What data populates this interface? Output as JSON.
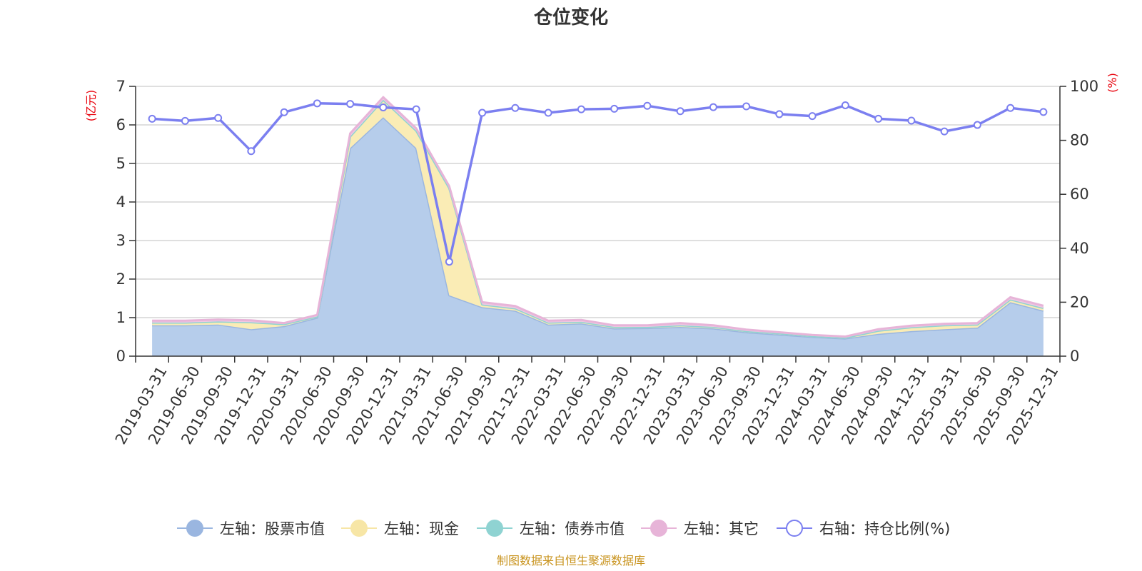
{
  "chart_data": {
    "type": "area",
    "title": "仓位变化",
    "left_unit": "(亿元)",
    "right_unit": "(%)",
    "categories": [
      "2019-03-31",
      "2019-06-30",
      "2019-09-30",
      "2019-12-31",
      "2020-03-31",
      "2020-06-30",
      "2020-09-30",
      "2020-12-31",
      "2021-03-31",
      "2021-06-30",
      "2021-09-30",
      "2021-12-31",
      "2022-03-31",
      "2022-06-30",
      "2022-09-30",
      "2022-12-31",
      "2023-03-31",
      "2023-06-30",
      "2023-09-30",
      "2023-12-31",
      "2024-03-31",
      "2024-06-30",
      "2024-09-30",
      "2024-12-31",
      "2025-03-31",
      "2025-06-30",
      "2025-09-30",
      "2025-12-31"
    ],
    "ylim_left": [
      0,
      7
    ],
    "yticks_left": [
      0,
      1,
      2,
      3,
      4,
      5,
      6,
      7
    ],
    "ylim_right": [
      0,
      100
    ],
    "yticks_right": [
      0,
      20,
      40,
      60,
      80,
      100
    ],
    "series": [
      {
        "name": "左轴：股票市值",
        "axis": "left",
        "color": "#9ab6e0",
        "fill": "#b6cdeb",
        "values": [
          0.8,
          0.8,
          0.82,
          0.7,
          0.78,
          1.0,
          5.4,
          6.2,
          5.4,
          1.58,
          1.27,
          1.18,
          0.82,
          0.85,
          0.72,
          0.73,
          0.76,
          0.72,
          0.62,
          0.56,
          0.5,
          0.46,
          0.58,
          0.65,
          0.7,
          0.74,
          1.4,
          1.18
        ]
      },
      {
        "name": "左轴：现金",
        "axis": "left",
        "color": "#f7e6a6",
        "fill": "#faecb5",
        "values": [
          0.07,
          0.07,
          0.08,
          0.18,
          0.05,
          0.03,
          0.3,
          0.45,
          0.45,
          2.78,
          0.07,
          0.06,
          0.05,
          0.04,
          0.04,
          0.03,
          0.04,
          0.04,
          0.03,
          0.03,
          0.02,
          0.02,
          0.08,
          0.1,
          0.1,
          0.08,
          0.07,
          0.07
        ]
      },
      {
        "name": "左轴：债券市值",
        "axis": "left",
        "color": "#8fd3d2",
        "fill": "#a8dddc",
        "values": [
          0,
          0,
          0,
          0,
          0,
          0,
          0,
          0,
          0,
          0,
          0,
          0,
          0,
          0,
          0,
          0,
          0,
          0,
          0,
          0,
          0,
          0,
          0,
          0,
          0,
          0,
          0,
          0
        ]
      },
      {
        "name": "左轴：其它",
        "axis": "left",
        "color": "#e7b4d8",
        "fill": "#efc9e3",
        "values": [
          0.05,
          0.05,
          0.05,
          0.05,
          0.03,
          0.04,
          0.08,
          0.07,
          0.06,
          0.05,
          0.06,
          0.06,
          0.05,
          0.05,
          0.04,
          0.04,
          0.06,
          0.04,
          0.04,
          0.03,
          0.03,
          0.03,
          0.04,
          0.04,
          0.04,
          0.04,
          0.06,
          0.06
        ]
      },
      {
        "name": "右轴：持仓比例(%)",
        "axis": "right",
        "color": "#7b7ff0",
        "values": [
          88.0,
          87.2,
          88.3,
          76.0,
          90.4,
          93.7,
          93.5,
          92.2,
          91.5,
          35.0,
          90.2,
          92.0,
          90.2,
          91.5,
          91.7,
          92.8,
          90.8,
          92.3,
          92.6,
          89.7,
          89.0,
          93.0,
          88.0,
          87.3,
          83.3,
          85.7,
          92.0,
          90.5
        ]
      }
    ]
  },
  "legend": [
    {
      "label": "左轴：股票市值",
      "color": "#9ab6e0",
      "marker": "filled"
    },
    {
      "label": "左轴：现金",
      "color": "#f7e6a6",
      "marker": "filled"
    },
    {
      "label": "左轴：债券市值",
      "color": "#8fd3d2",
      "marker": "filled"
    },
    {
      "label": "左轴：其它",
      "color": "#e7b4d8",
      "marker": "filled"
    },
    {
      "label": "右轴：持仓比例(%)",
      "color": "#7b7ff0",
      "marker": "hollow"
    }
  ],
  "source_note": "制图数据来自恒生聚源数据库",
  "colors": {
    "left_unit": "#e8000b",
    "right_unit": "#e8000b",
    "axis": "#333333",
    "grid": "#cccccc",
    "source": "#c9941f"
  }
}
